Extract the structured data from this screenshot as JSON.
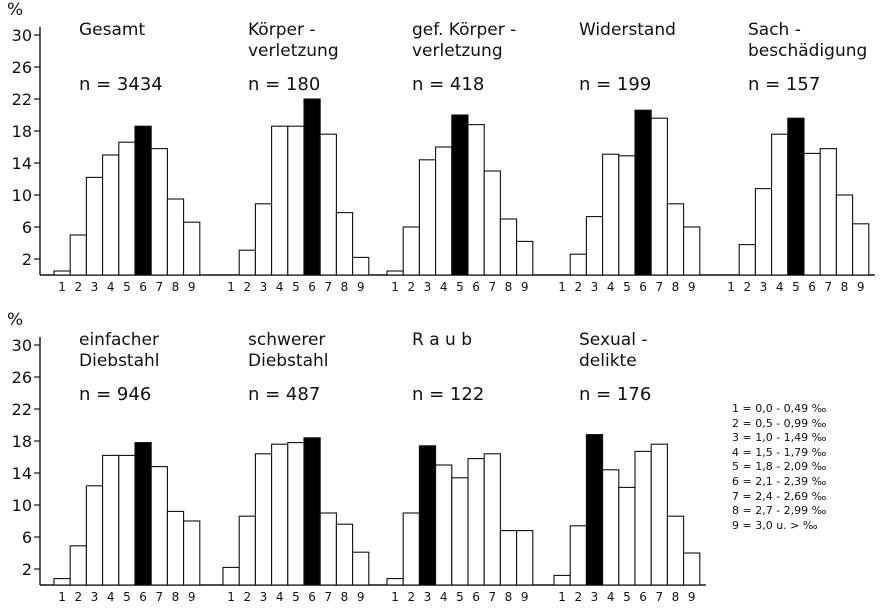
{
  "y_unit_label": "%",
  "legend": [
    "1 = 0,0 - 0,49 ‰",
    "2 = 0,5 - 0,99 ‰",
    "3 = 1,0 - 1,49 ‰",
    "4 = 1,5 - 1,79 ‰",
    "5 = 1,8 - 2,09 ‰",
    "6 = 2,1 - 2,39 ‰",
    "7 = 2,4 - 2,69 ‰",
    "8 = 2,7 - 2,99 ‰",
    "9 = 3,0 u. > ‰"
  ],
  "chart_data": [
    {
      "type": "bar",
      "title": [
        "Gesamt"
      ],
      "n": "n = 3434",
      "categories": [
        "1",
        "2",
        "3",
        "4",
        "5",
        "6",
        "7",
        "8",
        "9"
      ],
      "values": [
        0.5,
        5.0,
        12.2,
        15.0,
        16.6,
        18.6,
        15.8,
        9.5,
        6.6
      ],
      "highlight_index": 5,
      "ylim": [
        0,
        31
      ],
      "yticks": [
        "2",
        "6",
        "10",
        "14",
        "18",
        "22",
        "26",
        "30"
      ],
      "highlight_color": "#000000",
      "bar_color": "#ffffff"
    },
    {
      "type": "bar",
      "title": [
        "Körper -",
        "verletzung"
      ],
      "n": "n = 180",
      "categories": [
        "1",
        "2",
        "3",
        "4",
        "5",
        "6",
        "7",
        "8",
        "9"
      ],
      "values": [
        0,
        3.1,
        8.9,
        18.6,
        18.6,
        22.0,
        17.6,
        7.8,
        2.2
      ],
      "highlight_index": 5,
      "ylim": [
        0,
        31
      ],
      "yticks": [],
      "highlight_color": "#000000",
      "bar_color": "#ffffff"
    },
    {
      "type": "bar",
      "title": [
        "gef. Körper -",
        "verletzung"
      ],
      "n": "n = 418",
      "categories": [
        "1",
        "2",
        "3",
        "4",
        "5",
        "6",
        "7",
        "8",
        "9"
      ],
      "values": [
        0.5,
        6.0,
        14.4,
        16.0,
        20.0,
        18.8,
        13.0,
        7.0,
        4.2
      ],
      "highlight_index": 4,
      "ylim": [
        0,
        31
      ],
      "yticks": [],
      "highlight_color": "#000000",
      "bar_color": "#ffffff"
    },
    {
      "type": "bar",
      "title": [
        "Widerstand"
      ],
      "n": "n = 199",
      "categories": [
        "1",
        "2",
        "3",
        "4",
        "5",
        "6",
        "7",
        "8",
        "9"
      ],
      "values": [
        0,
        2.6,
        7.3,
        15.1,
        14.9,
        20.6,
        19.6,
        8.9,
        6.0
      ],
      "highlight_index": 5,
      "ylim": [
        0,
        31
      ],
      "yticks": [],
      "highlight_color": "#000000",
      "bar_color": "#ffffff"
    },
    {
      "type": "bar",
      "title": [
        "Sach -",
        "beschädigung"
      ],
      "n": "n = 157",
      "categories": [
        "1",
        "2",
        "3",
        "4",
        "5",
        "6",
        "7",
        "8",
        "9"
      ],
      "values": [
        0,
        3.8,
        10.8,
        17.6,
        19.6,
        15.2,
        15.8,
        10.0,
        6.4
      ],
      "highlight_index": 4,
      "ylim": [
        0,
        31
      ],
      "yticks": [],
      "highlight_color": "#000000",
      "bar_color": "#ffffff"
    },
    {
      "type": "bar",
      "title": [
        "einfacher",
        "Diebstahl"
      ],
      "n": "n = 946",
      "categories": [
        "1",
        "2",
        "3",
        "4",
        "5",
        "6",
        "7",
        "8",
        "9"
      ],
      "values": [
        0.8,
        4.9,
        12.4,
        16.2,
        16.2,
        17.8,
        14.8,
        9.2,
        8.0
      ],
      "highlight_index": 5,
      "ylim": [
        0,
        31
      ],
      "yticks": [
        "2",
        "6",
        "10",
        "14",
        "18",
        "22",
        "26",
        "30"
      ],
      "highlight_color": "#000000",
      "bar_color": "#ffffff"
    },
    {
      "type": "bar",
      "title": [
        "schwerer",
        "Diebstahl"
      ],
      "n": "n = 487",
      "categories": [
        "1",
        "2",
        "3",
        "4",
        "5",
        "6",
        "7",
        "8",
        "9"
      ],
      "values": [
        2.2,
        8.6,
        16.4,
        17.6,
        17.8,
        18.4,
        9.0,
        7.6,
        4.1
      ],
      "highlight_index": 5,
      "ylim": [
        0,
        31
      ],
      "yticks": [],
      "highlight_color": "#000000",
      "bar_color": "#ffffff"
    },
    {
      "type": "bar",
      "title": [
        "R a u b"
      ],
      "n": "n = 122",
      "categories": [
        "1",
        "2",
        "3",
        "4",
        "5",
        "6",
        "7",
        "8",
        "9"
      ],
      "values": [
        0.8,
        9.0,
        17.4,
        15.0,
        13.4,
        15.8,
        16.4,
        6.8,
        6.8
      ],
      "highlight_index": 2,
      "ylim": [
        0,
        31
      ],
      "yticks": [],
      "highlight_color": "#000000",
      "bar_color": "#ffffff"
    },
    {
      "type": "bar",
      "title": [
        "Sexual -",
        "delikte"
      ],
      "n": "n = 176",
      "categories": [
        "1",
        "2",
        "3",
        "4",
        "5",
        "6",
        "7",
        "8",
        "9"
      ],
      "values": [
        1.2,
        7.4,
        18.8,
        14.4,
        12.2,
        16.7,
        17.6,
        8.6,
        4.0
      ],
      "highlight_index": 2,
      "ylim": [
        0,
        31
      ],
      "yticks": [],
      "highlight_color": "#000000",
      "bar_color": "#ffffff"
    }
  ]
}
